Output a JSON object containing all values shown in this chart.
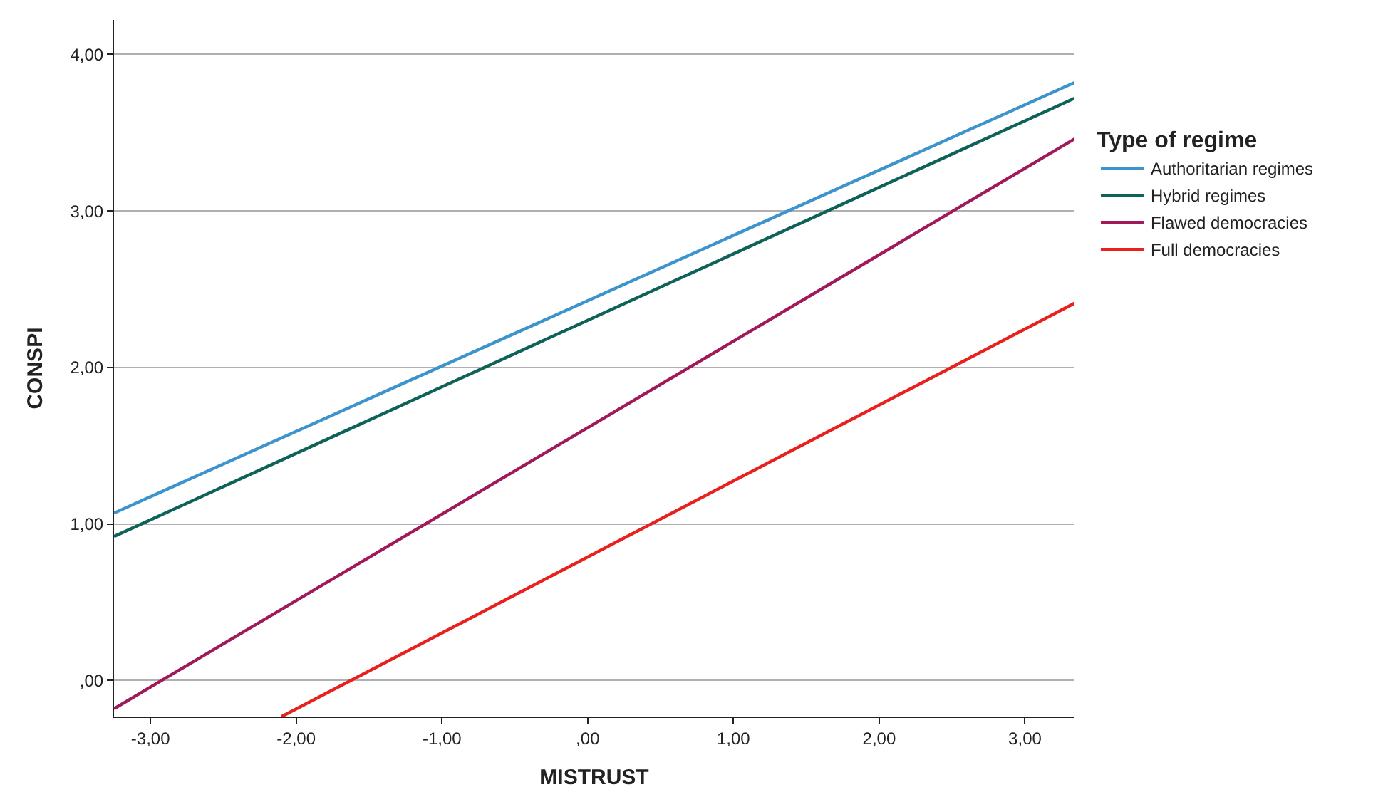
{
  "chart_data": {
    "type": "line",
    "xlabel": "MISTRUST",
    "ylabel": "CONSPI",
    "legend_title": "Type of regime",
    "series": [
      {
        "name": "Authoritarian regimes",
        "color": "#3d94cc",
        "x": [
          -3.25,
          3.34
        ],
        "values": [
          1.07,
          3.82
        ]
      },
      {
        "name": "Hybrid regimes",
        "color": "#0f6258",
        "x": [
          -3.25,
          3.34
        ],
        "values": [
          0.92,
          3.72
        ]
      },
      {
        "name": "Flawed democracies",
        "color": "#a0195a",
        "x": [
          -3.25,
          3.34
        ],
        "values": [
          -0.18,
          3.46
        ]
      },
      {
        "name": "Full democracies",
        "color": "#e8201e",
        "x": [
          -2.1,
          3.34
        ],
        "values": [
          -0.23,
          2.41
        ]
      }
    ],
    "xlim": [
      -3.25,
      3.34
    ],
    "ylim": [
      -0.23,
      4.22
    ],
    "xticks": [
      {
        "value": -3,
        "label": "-3,00"
      },
      {
        "value": -2,
        "label": "-2,00"
      },
      {
        "value": -1,
        "label": "-1,00"
      },
      {
        "value": 0,
        "label": ",00"
      },
      {
        "value": 1,
        "label": "1,00"
      },
      {
        "value": 2,
        "label": "2,00"
      },
      {
        "value": 3,
        "label": "3,00"
      }
    ],
    "yticks": [
      {
        "value": 0,
        "label": ",00"
      },
      {
        "value": 1,
        "label": "1,00"
      },
      {
        "value": 2,
        "label": "2,00"
      },
      {
        "value": 3,
        "label": "3,00"
      },
      {
        "value": 4,
        "label": "4,00"
      }
    ],
    "grid": "y",
    "legend": "right",
    "marker": "none",
    "line_style": "solid"
  }
}
